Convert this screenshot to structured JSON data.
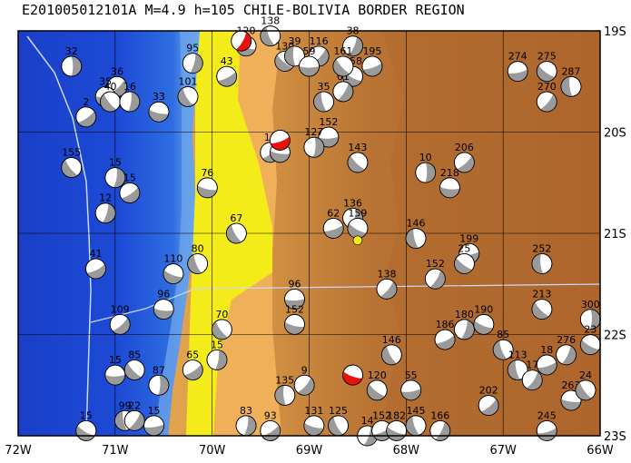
{
  "title": "E201005012101A  M=4.9  h=105  CHILE-BOLIVIA BORDER REGION",
  "colors": {
    "ocean_deep": "#1a3fc8",
    "ocean_mid": "#2f6de0",
    "ocean_shelf": "#7fb4ef",
    "coast_low": "#f1f16a",
    "coast_yellow": "#f4ec1a",
    "land_low": "#f0b55a",
    "land_mid": "#dc9e4a",
    "land_high": "#b46c2c",
    "land_highest": "#a8602a",
    "trench_line": "#c9d9ff",
    "grid": "#000000",
    "beachball_compression": "#9a9a9a",
    "beachball_target": "#e8120c",
    "epicenter": "#f2e81a"
  },
  "axes": {
    "lon_labels": [
      "72W",
      "71W",
      "70W",
      "69W",
      "68W",
      "67W",
      "66W"
    ],
    "lat_labels": [
      "19S",
      "20S",
      "21S",
      "22S",
      "23S"
    ]
  },
  "mechanisms": [
    {
      "depth": "32",
      "lon": -71.45,
      "lat": -19.35
    },
    {
      "depth": "36",
      "lon": -70.98,
      "lat": -19.55
    },
    {
      "depth": "35",
      "lon": -71.1,
      "lat": -19.65
    },
    {
      "depth": "40",
      "lon": -71.05,
      "lat": -19.7
    },
    {
      "depth": "16",
      "lon": -70.85,
      "lat": -19.7
    },
    {
      "depth": "2",
      "lon": -71.3,
      "lat": -19.85
    },
    {
      "depth": "33",
      "lon": -70.55,
      "lat": -19.8
    },
    {
      "depth": "101",
      "lon": -70.25,
      "lat": -19.65
    },
    {
      "depth": "95",
      "lon": -70.2,
      "lat": -19.32
    },
    {
      "depth": "43",
      "lon": -69.85,
      "lat": -19.45
    },
    {
      "depth": "120",
      "lon": -69.65,
      "lat": -19.15
    },
    {
      "depth": "138",
      "lon": -69.4,
      "lat": -19.05
    },
    {
      "depth": "38",
      "lon": -68.55,
      "lat": -19.15
    },
    {
      "depth": "195",
      "lon": -68.35,
      "lat": -19.35
    },
    {
      "depth": "158",
      "lon": -68.55,
      "lat": -19.45
    },
    {
      "depth": "35",
      "lon": -68.85,
      "lat": -19.7
    },
    {
      "depth": "61",
      "lon": -68.65,
      "lat": -19.6
    },
    {
      "depth": "274",
      "lon": -66.85,
      "lat": -19.4
    },
    {
      "depth": "275",
      "lon": -66.55,
      "lat": -19.4
    },
    {
      "depth": "287",
      "lon": -66.3,
      "lat": -19.55
    },
    {
      "depth": "270",
      "lon": -66.55,
      "lat": -19.7
    },
    {
      "depth": "152",
      "lon": -68.8,
      "lat": -20.05
    },
    {
      "depth": "143",
      "lon": -68.5,
      "lat": -20.3
    },
    {
      "depth": "10",
      "lon": -67.8,
      "lat": -20.4
    },
    {
      "depth": "206",
      "lon": -67.4,
      "lat": -20.3
    },
    {
      "depth": "218",
      "lon": -67.55,
      "lat": -20.55
    },
    {
      "depth": "155",
      "lon": -71.45,
      "lat": -20.35
    },
    {
      "depth": "15",
      "lon": -71.0,
      "lat": -20.45
    },
    {
      "depth": "15",
      "lon": -70.85,
      "lat": -20.6
    },
    {
      "depth": "76",
      "lon": -70.05,
      "lat": -20.55
    },
    {
      "depth": "67",
      "lon": -69.75,
      "lat": -21.0
    },
    {
      "depth": "12",
      "lon": -71.1,
      "lat": -20.8
    },
    {
      "depth": "41",
      "lon": -71.2,
      "lat": -21.35
    },
    {
      "depth": "110",
      "lon": -70.4,
      "lat": -21.4
    },
    {
      "depth": "80",
      "lon": -70.15,
      "lat": -21.3
    },
    {
      "depth": "136",
      "lon": -68.55,
      "lat": -20.85
    },
    {
      "depth": "62",
      "lon": -68.75,
      "lat": -20.95
    },
    {
      "depth": "159",
      "lon": -68.5,
      "lat": -20.95
    },
    {
      "depth": "146",
      "lon": -67.9,
      "lat": -21.05
    },
    {
      "depth": "152",
      "lon": -67.7,
      "lat": -21.45
    },
    {
      "depth": "199",
      "lon": -67.35,
      "lat": -21.2
    },
    {
      "depth": "25",
      "lon": -67.4,
      "lat": -21.3
    },
    {
      "depth": "252",
      "lon": -66.6,
      "lat": -21.3
    },
    {
      "depth": "138",
      "lon": -68.2,
      "lat": -21.55
    },
    {
      "depth": "96",
      "lon": -69.15,
      "lat": -21.65
    },
    {
      "depth": "213",
      "lon": -66.6,
      "lat": -21.75
    },
    {
      "depth": "300",
      "lon": -66.1,
      "lat": -21.85
    },
    {
      "depth": "109",
      "lon": -70.95,
      "lat": -21.9
    },
    {
      "depth": "96",
      "lon": -70.5,
      "lat": -21.75
    },
    {
      "depth": "70",
      "lon": -69.9,
      "lat": -21.95
    },
    {
      "depth": "15",
      "lon": -69.95,
      "lat": -22.25
    },
    {
      "depth": "65",
      "lon": -70.2,
      "lat": -22.35
    },
    {
      "depth": "152",
      "lon": -69.15,
      "lat": -21.9
    },
    {
      "depth": "146",
      "lon": -68.15,
      "lat": -22.2
    },
    {
      "depth": "180",
      "lon": -67.4,
      "lat": -21.95
    },
    {
      "depth": "186",
      "lon": -67.6,
      "lat": -22.05
    },
    {
      "depth": "190",
      "lon": -67.2,
      "lat": -21.9
    },
    {
      "depth": "85",
      "lon": -67.0,
      "lat": -22.15
    },
    {
      "depth": "276",
      "lon": -66.35,
      "lat": -22.2
    },
    {
      "depth": "18",
      "lon": -66.55,
      "lat": -22.3
    },
    {
      "depth": "23",
      "lon": -66.1,
      "lat": -22.1
    },
    {
      "depth": "113",
      "lon": -66.85,
      "lat": -22.35
    },
    {
      "depth": "17",
      "lon": -66.7,
      "lat": -22.45
    },
    {
      "depth": "55",
      "lon": -67.95,
      "lat": -22.55
    },
    {
      "depth": "120",
      "lon": -68.3,
      "lat": -22.55
    },
    {
      "depth": "135",
      "lon": -69.25,
      "lat": -22.6
    },
    {
      "depth": "9",
      "lon": -69.05,
      "lat": -22.5
    },
    {
      "depth": "15",
      "lon": -71.0,
      "lat": -22.4
    },
    {
      "depth": "85",
      "lon": -70.8,
      "lat": -22.35
    },
    {
      "depth": "87",
      "lon": -70.55,
      "lat": -22.5
    },
    {
      "depth": "202",
      "lon": -67.15,
      "lat": -22.7
    },
    {
      "depth": "263",
      "lon": -66.3,
      "lat": -22.65
    },
    {
      "depth": "24",
      "lon": -66.15,
      "lat": -22.55
    },
    {
      "depth": "83",
      "lon": -69.65,
      "lat": -22.9
    },
    {
      "depth": "93",
      "lon": -69.4,
      "lat": -22.95
    },
    {
      "depth": "131",
      "lon": -68.95,
      "lat": -22.9
    },
    {
      "depth": "125",
      "lon": -68.7,
      "lat": -22.9
    },
    {
      "depth": "14",
      "lon": -68.4,
      "lat": -23.0
    },
    {
      "depth": "152",
      "lon": -68.25,
      "lat": -22.95
    },
    {
      "depth": "182",
      "lon": -68.1,
      "lat": -22.95
    },
    {
      "depth": "145",
      "lon": -67.9,
      "lat": -22.9
    },
    {
      "depth": "166",
      "lon": -67.65,
      "lat": -22.95
    },
    {
      "depth": "245",
      "lon": -66.55,
      "lat": -22.95
    },
    {
      "depth": "15",
      "lon": -71.3,
      "lat": -22.95
    },
    {
      "depth": "99",
      "lon": -70.9,
      "lat": -22.85
    },
    {
      "depth": "22",
      "lon": -70.8,
      "lat": -22.85
    },
    {
      "depth": "15",
      "lon": -70.6,
      "lat": -22.9
    },
    {
      "depth": "130",
      "lon": -69.25,
      "lat": -19.3
    },
    {
      "depth": "39",
      "lon": -69.15,
      "lat": -19.25
    },
    {
      "depth": "116",
      "lon": -68.9,
      "lat": -19.25
    },
    {
      "depth": "59",
      "lon": -69.0,
      "lat": -19.35
    },
    {
      "depth": "161",
      "lon": -68.65,
      "lat": -19.35
    },
    {
      "depth": "127",
      "lon": -68.95,
      "lat": -20.15
    },
    {
      "depth": "13",
      "lon": -69.4,
      "lat": -20.2
    },
    {
      "depth": "146",
      "lon": -69.3,
      "lat": -20.2
    }
  ],
  "target_events": [
    {
      "lon": -69.7,
      "lat": -19.1
    },
    {
      "lon": -69.3,
      "lat": -20.08
    },
    {
      "lon": -68.55,
      "lat": -22.4
    }
  ],
  "epicenter": {
    "lon": -68.5,
    "lat": -21.07
  }
}
